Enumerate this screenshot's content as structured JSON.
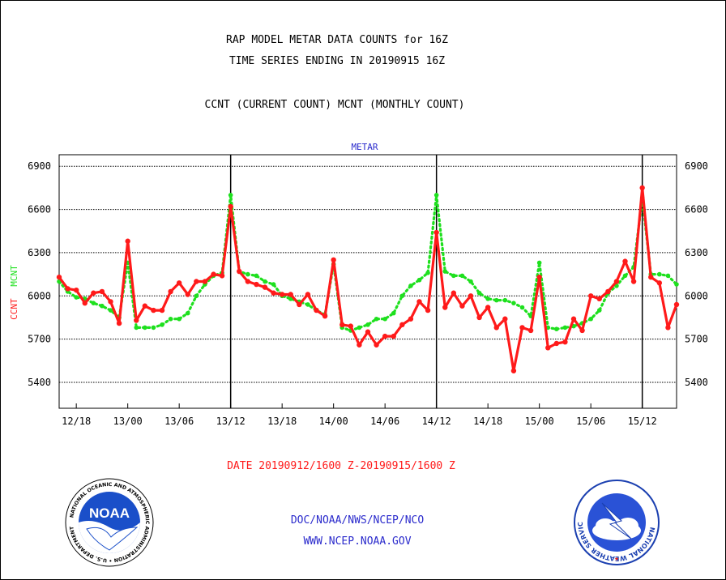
{
  "header": {
    "line1": "RAP MODEL METAR DATA COUNTS for 16Z",
    "line2": "TIME SERIES ENDING IN 20190915 16Z",
    "line3": "CCNT (CURRENT COUNT) MCNT (MONTHLY COUNT)"
  },
  "footer": {
    "date_range": "DATE 20190912/1600 Z-20190915/1600 Z",
    "agency": "DOC/NOAA/NWS/NCEP/NCO",
    "website": "WWW.NCEP.NOAA.GOV"
  },
  "logos": {
    "noaa_text": "NOAA",
    "noaa_ring": "NATIONAL OCEANIC AND ATMOSPHERIC ADMINISTRATION • U.S. DEPARTMENT OF COMMERCE",
    "nws_ring": "NATIONAL WEATHER SERVICE"
  },
  "colors": {
    "ccnt": "#ff1a1a",
    "mcnt": "#1ee01e",
    "title_blue": "#2a2acc",
    "grid": "#000000"
  },
  "chart_data": {
    "type": "line",
    "title": "METAR",
    "ylabel_left": [
      "CCNT",
      "MCNT"
    ],
    "yticks": [
      5400,
      5700,
      6000,
      6300,
      6600,
      6900
    ],
    "ylim": [
      5220,
      6980
    ],
    "xlim": [
      0,
      72
    ],
    "xticks": [
      {
        "x": 2,
        "label": "12/18"
      },
      {
        "x": 8,
        "label": "13/00"
      },
      {
        "x": 14,
        "label": "13/06"
      },
      {
        "x": 20,
        "label": "13/12"
      },
      {
        "x": 26,
        "label": "13/18"
      },
      {
        "x": 32,
        "label": "14/00"
      },
      {
        "x": 38,
        "label": "14/06"
      },
      {
        "x": 44,
        "label": "14/12"
      },
      {
        "x": 50,
        "label": "14/18"
      },
      {
        "x": 56,
        "label": "15/00"
      },
      {
        "x": 62,
        "label": "15/06"
      },
      {
        "x": 68,
        "label": "15/12"
      }
    ],
    "vlines": [
      20,
      44,
      68
    ],
    "grid": true,
    "series": [
      {
        "name": "CCNT",
        "values": [
          6130,
          6050,
          6040,
          5950,
          6020,
          6030,
          5960,
          5810,
          6380,
          5830,
          5930,
          5900,
          5900,
          6030,
          6090,
          6010,
          6100,
          6100,
          6150,
          6140,
          6620,
          6170,
          6100,
          6080,
          6060,
          6020,
          6010,
          6010,
          5940,
          6010,
          5900,
          5860,
          6250,
          5800,
          5790,
          5660,
          5750,
          5660,
          5720,
          5720,
          5800,
          5840,
          5960,
          5900,
          6440,
          5920,
          6020,
          5930,
          6000,
          5850,
          5920,
          5780,
          5840,
          5480,
          5780,
          5760,
          6130,
          5640,
          5670,
          5680,
          5840,
          5760,
          6000,
          5980,
          6030,
          6100,
          6240,
          6100,
          6750,
          6130,
          6090,
          5780,
          5940
        ]
      },
      {
        "name": "MCNT",
        "values": [
          6100,
          6030,
          5990,
          5980,
          5950,
          5930,
          5900,
          5850,
          6230,
          5780,
          5780,
          5780,
          5800,
          5840,
          5840,
          5880,
          6000,
          6080,
          6140,
          6160,
          6700,
          6170,
          6150,
          6140,
          6100,
          6080,
          6000,
          5980,
          5960,
          5940,
          5900,
          5870,
          6220,
          5780,
          5760,
          5780,
          5800,
          5840,
          5840,
          5880,
          6000,
          6070,
          6110,
          6160,
          6700,
          6170,
          6140,
          6140,
          6100,
          6020,
          5980,
          5970,
          5970,
          5950,
          5920,
          5860,
          6230,
          5780,
          5770,
          5780,
          5790,
          5810,
          5840,
          5900,
          6020,
          6070,
          6140,
          6200,
          6680,
          6150,
          6150,
          6140,
          6080
        ]
      }
    ]
  }
}
